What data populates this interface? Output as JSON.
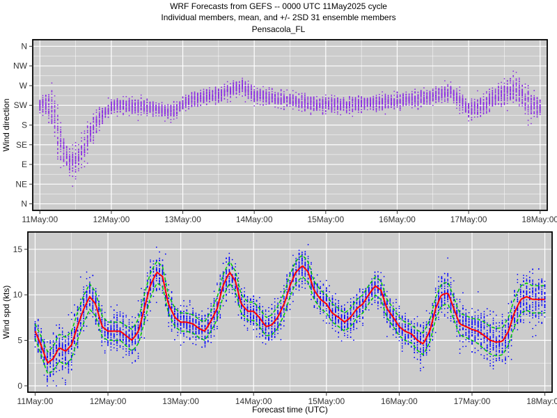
{
  "header": {
    "title_line1": "WRF Forecasts from GEFS --  0000 UTC 11May2025  cycle",
    "title_line2": "Individual members, mean, and +/- 2SD    31 ensemble members",
    "title_line3": "Pensacola_FL"
  },
  "colors": {
    "panel_bg": "#cccccc",
    "grid": "#ffffff",
    "direction_points": "#8a2be2",
    "speed_points": "#0000ff",
    "mean_line": "#ff0000",
    "sd_lines": "#00cc00"
  },
  "chart_data": [
    {
      "type": "scatter",
      "ylabel": "Wind direction",
      "xlabel": "",
      "x_unit": "days since 11May 00 UTC",
      "xlim": [
        -0.1,
        7.1
      ],
      "x_ticks": [
        "11May:00",
        "12May:00",
        "13May:00",
        "14May:00",
        "15May:00",
        "16May:00",
        "17May:00",
        "18May:00"
      ],
      "y_ticks": [
        "N",
        "NE",
        "E",
        "SE",
        "S",
        "SW",
        "W",
        "NW",
        "N"
      ],
      "y_tick_degrees": [
        0,
        45,
        90,
        135,
        180,
        225,
        270,
        315,
        360
      ],
      "ylim": [
        -15,
        375
      ],
      "members": 31,
      "grid": true,
      "series": [
        {
          "x": [
            0.0,
            0.08,
            0.17,
            0.25,
            0.33,
            0.42,
            0.5,
            0.58,
            0.67,
            0.75,
            0.83,
            0.92,
            1.0,
            1.17,
            1.33,
            1.5,
            1.67,
            1.83,
            2.0,
            2.17,
            2.33,
            2.5,
            2.67,
            2.83,
            3.0,
            3.25,
            3.5,
            3.75,
            4.0,
            4.25,
            4.5,
            4.75,
            5.0,
            5.25,
            5.5,
            5.75,
            6.0,
            6.17,
            6.33,
            6.5,
            6.67,
            6.83,
            7.0
          ],
          "mean_deg": [
            225,
            230,
            215,
            160,
            120,
            100,
            95,
            115,
            150,
            175,
            195,
            210,
            220,
            225,
            225,
            220,
            215,
            210,
            225,
            240,
            245,
            250,
            260,
            270,
            248,
            242,
            235,
            230,
            225,
            225,
            230,
            232,
            235,
            240,
            245,
            255,
            215,
            220,
            240,
            255,
            265,
            230,
            220
          ],
          "spread_deg": [
            15,
            20,
            45,
            55,
            35,
            30,
            30,
            30,
            30,
            25,
            20,
            15,
            15,
            15,
            15,
            15,
            15,
            15,
            15,
            15,
            15,
            15,
            15,
            15,
            15,
            15,
            15,
            15,
            15,
            15,
            15,
            15,
            15,
            15,
            15,
            15,
            20,
            20,
            20,
            25,
            30,
            30,
            20
          ]
        }
      ]
    },
    {
      "type": "scatter",
      "ylabel": "Wind spd (kts)",
      "xlabel": "Forecast time (UTC)",
      "x_unit": "days since 11May 00 UTC",
      "xlim": [
        -0.1,
        7.1
      ],
      "x_ticks": [
        "11May:00",
        "12May:00",
        "13May:00",
        "14May:00",
        "15May:00",
        "16May:00",
        "17May:00",
        "18May:00"
      ],
      "y_ticks": [
        "0",
        "5",
        "10",
        "15"
      ],
      "ylim": [
        -0.7,
        16.9
      ],
      "members": 31,
      "grid": true,
      "series": [
        {
          "name": "mean",
          "x": [
            0.0,
            0.08,
            0.17,
            0.25,
            0.33,
            0.42,
            0.5,
            0.58,
            0.67,
            0.75,
            0.83,
            0.92,
            1.0,
            1.08,
            1.17,
            1.25,
            1.33,
            1.42,
            1.5,
            1.58,
            1.67,
            1.75,
            1.83,
            1.92,
            2.0,
            2.08,
            2.17,
            2.25,
            2.33,
            2.42,
            2.5,
            2.58,
            2.67,
            2.75,
            2.83,
            2.92,
            3.0,
            3.08,
            3.17,
            3.25,
            3.33,
            3.42,
            3.5,
            3.58,
            3.67,
            3.75,
            3.83,
            3.92,
            4.0,
            4.08,
            4.17,
            4.25,
            4.33,
            4.42,
            4.5,
            4.58,
            4.67,
            4.75,
            4.83,
            4.92,
            5.0,
            5.08,
            5.17,
            5.25,
            5.33,
            5.42,
            5.5,
            5.58,
            5.67,
            5.75,
            5.83,
            5.92,
            6.0,
            6.08,
            6.17,
            6.25,
            6.33,
            6.42,
            6.5,
            6.58,
            6.67,
            6.75,
            6.83,
            6.92,
            7.0
          ],
          "values": [
            6.0,
            4.5,
            2.5,
            3.0,
            4.2,
            3.8,
            4.5,
            6.5,
            8.5,
            9.8,
            9.0,
            6.5,
            6.0,
            6.0,
            6.0,
            5.5,
            5.0,
            6.0,
            8.5,
            11.0,
            12.5,
            12.0,
            9.0,
            7.5,
            7.0,
            7.0,
            6.8,
            6.3,
            6.0,
            7.2,
            8.5,
            11.0,
            12.5,
            11.5,
            9.0,
            8.2,
            8.2,
            7.5,
            6.5,
            6.7,
            7.5,
            9.0,
            11.0,
            12.5,
            13.2,
            12.5,
            10.5,
            9.5,
            9.0,
            8.0,
            7.5,
            7.0,
            7.5,
            8.5,
            9.0,
            10.0,
            11.0,
            10.5,
            8.5,
            7.5,
            6.5,
            6.0,
            5.7,
            5.0,
            4.6,
            6.0,
            8.5,
            10.0,
            10.2,
            8.5,
            6.8,
            6.5,
            6.2,
            6.0,
            5.5,
            5.0,
            4.8,
            4.9,
            6.0,
            8.0,
            9.5,
            9.8,
            9.5,
            9.5,
            9.5
          ]
        },
        {
          "name": "+/- 2SD",
          "x": [
            0.0,
            0.17,
            0.33,
            0.5,
            0.67,
            0.83,
            1.0,
            1.17,
            1.33,
            1.5,
            1.67,
            1.83,
            2.0,
            2.17,
            2.33,
            2.5,
            2.67,
            2.83,
            3.0,
            3.17,
            3.33,
            3.5,
            3.67,
            3.83,
            4.0,
            4.17,
            4.33,
            4.5,
            4.67,
            4.83,
            5.0,
            5.17,
            5.33,
            5.5,
            5.67,
            5.83,
            6.0,
            6.17,
            6.33,
            6.5,
            6.67,
            6.83,
            7.0
          ],
          "sd2": [
            0.8,
            1.2,
            1.5,
            1.5,
            1.5,
            1.3,
            1.0,
            1.0,
            1.2,
            1.5,
            1.2,
            1.0,
            1.0,
            1.0,
            1.0,
            1.2,
            1.2,
            1.0,
            1.0,
            1.0,
            1.2,
            1.2,
            1.2,
            1.0,
            1.0,
            1.0,
            1.0,
            1.0,
            1.0,
            1.0,
            1.0,
            1.0,
            1.2,
            1.2,
            1.2,
            1.2,
            1.2,
            1.5,
            1.5,
            1.5,
            1.5,
            1.5,
            1.5
          ]
        }
      ]
    }
  ]
}
